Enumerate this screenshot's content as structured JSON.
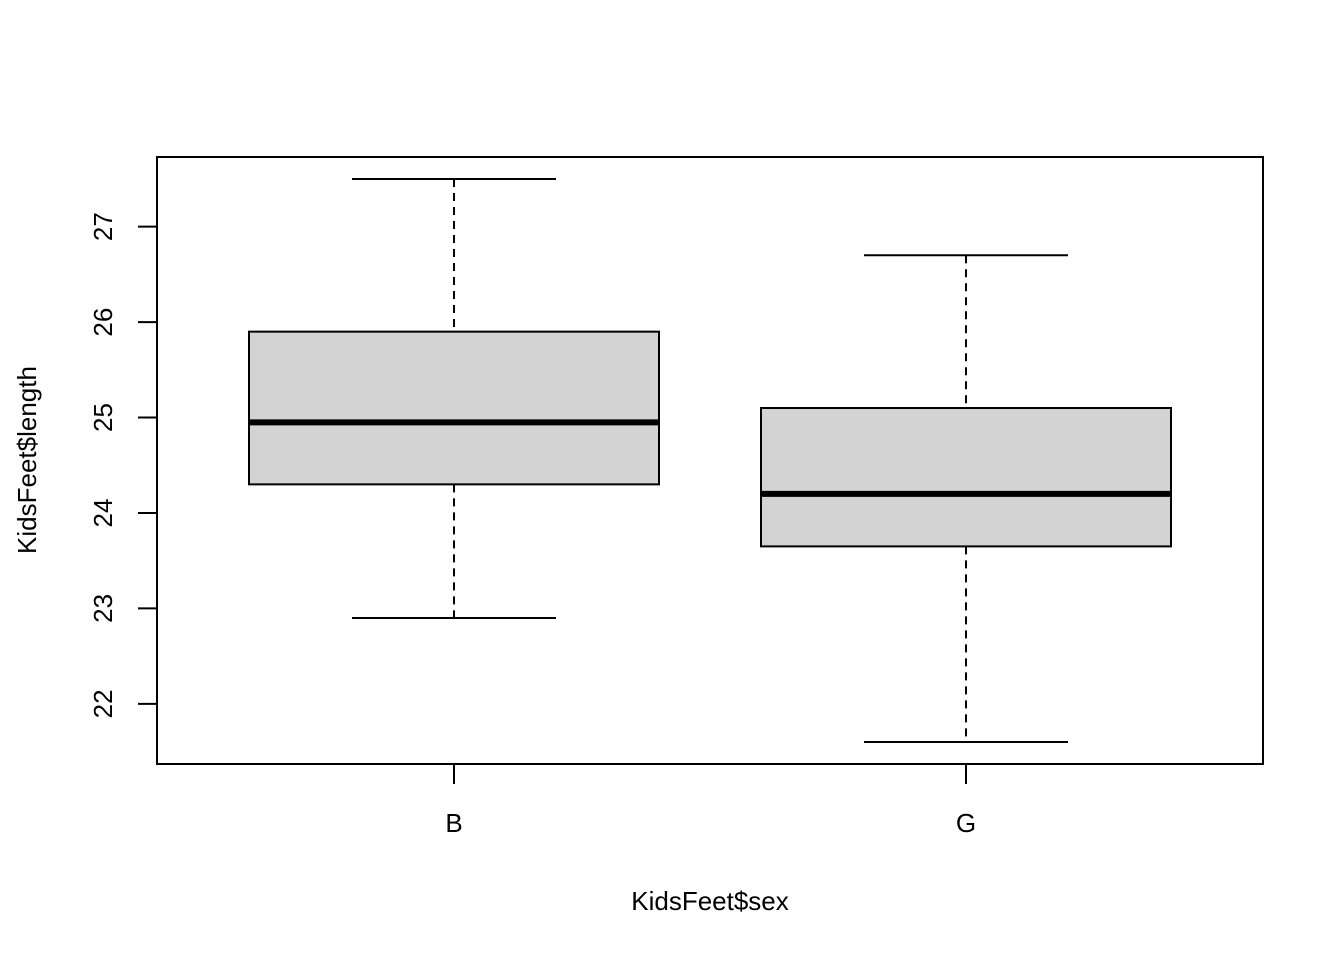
{
  "chart_data": {
    "type": "boxplot",
    "xlabel": "KidsFeet$sex",
    "ylabel": "KidsFeet$length",
    "categories": [
      "B",
      "G"
    ],
    "boxes": [
      {
        "category": "B",
        "whisker_low": 22.9,
        "q1": 24.3,
        "median": 24.95,
        "q3": 25.9,
        "whisker_high": 27.5
      },
      {
        "category": "G",
        "whisker_low": 21.6,
        "q1": 23.65,
        "median": 24.2,
        "q3": 25.1,
        "whisker_high": 26.7
      }
    ],
    "y_ticks": [
      "22",
      "23",
      "24",
      "25",
      "26",
      "27"
    ],
    "ylim": [
      21.37,
      27.73
    ],
    "box_fill": "#d3d3d3",
    "grid": false
  }
}
